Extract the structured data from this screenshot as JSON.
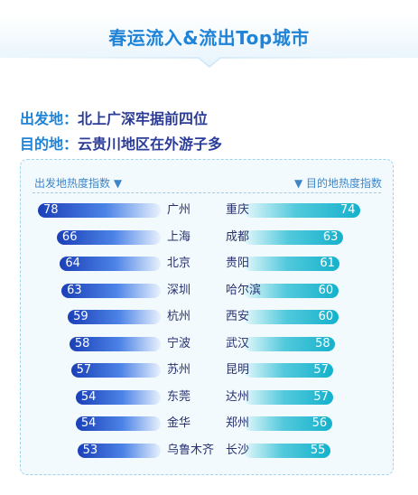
{
  "header": {
    "title": "春运流入&流出Top城市"
  },
  "origins": {
    "label": "出发地：",
    "value": "北上广深牢据前四位"
  },
  "destinations": {
    "label": "目的地：",
    "value": "云贵川地区在外游子多"
  },
  "colors": {
    "accent": "#1f83d8",
    "origin_bar": "#2f5fd6",
    "dest_bar": "#25bcd3"
  },
  "chart_data": {
    "type": "bar",
    "left_header": "出发地热度指数 ▼",
    "right_header": "▼ 目的地热度指数",
    "scale_max": 78,
    "origins": [
      {
        "city": "广州",
        "value": 78
      },
      {
        "city": "上海",
        "value": 66
      },
      {
        "city": "北京",
        "value": 64
      },
      {
        "city": "深圳",
        "value": 63
      },
      {
        "city": "杭州",
        "value": 59
      },
      {
        "city": "宁波",
        "value": 58
      },
      {
        "city": "苏州",
        "value": 57
      },
      {
        "city": "东莞",
        "value": 54
      },
      {
        "city": "金华",
        "value": 54
      },
      {
        "city": "乌鲁木齐",
        "value": 53
      }
    ],
    "destinations": [
      {
        "city": "重庆",
        "value": 74
      },
      {
        "city": "成都",
        "value": 63
      },
      {
        "city": "贵阳",
        "value": 61
      },
      {
        "city": "哈尔滨",
        "value": 60
      },
      {
        "city": "西安",
        "value": 60
      },
      {
        "city": "武汉",
        "value": 58
      },
      {
        "city": "昆明",
        "value": 57
      },
      {
        "city": "达州",
        "value": 57
      },
      {
        "city": "郑州",
        "value": 56
      },
      {
        "city": "长沙",
        "value": 55
      }
    ]
  }
}
